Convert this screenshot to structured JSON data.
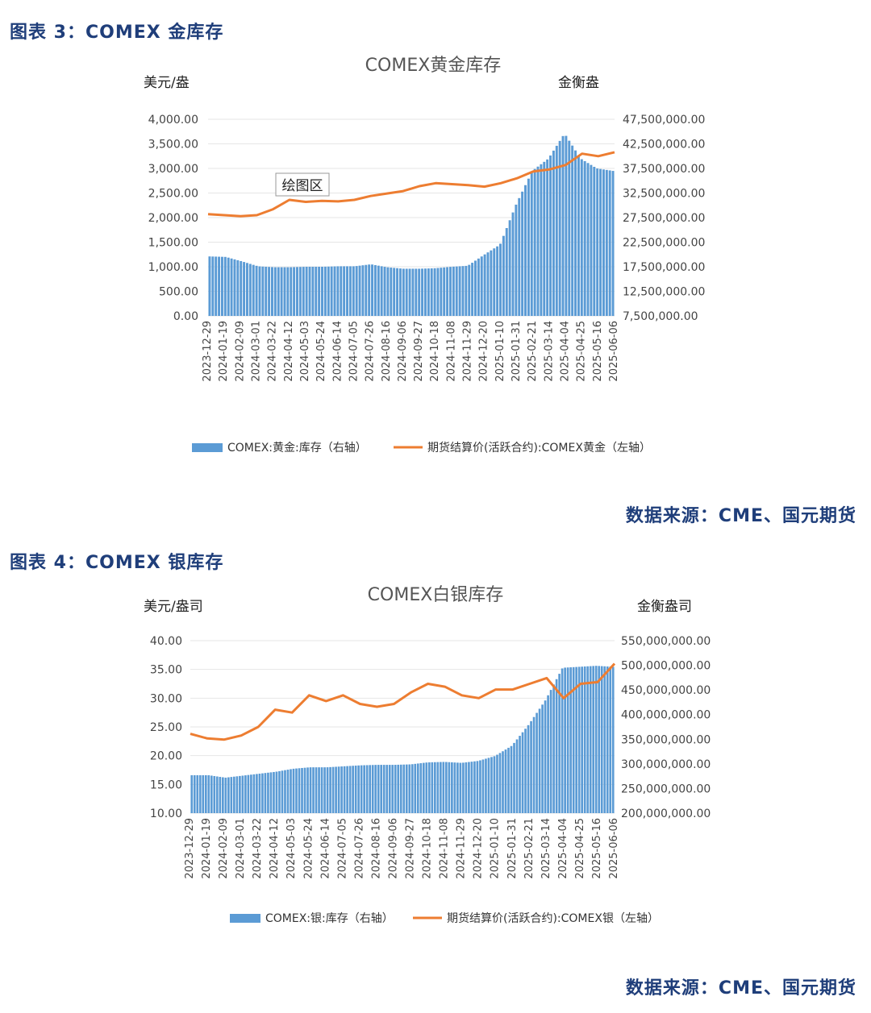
{
  "figure3": {
    "caption": "图表 3：COMEX 金库存",
    "source": "数据来源：CME、国元期货",
    "tooltip": "绘图区"
  },
  "figure4": {
    "caption": "图表 4：COMEX 银库存",
    "source": "数据来源：CME、国元期货"
  },
  "colors": {
    "bar": "#5b9bd5",
    "line": "#ed7d31",
    "caption": "#1f3e7a"
  },
  "chart_data": [
    {
      "type": "bar",
      "title": "COMEX黄金库存",
      "ylabel_left": "美元/盎",
      "ylabel_right": "金衡盎",
      "yticks_left": [
        "4,000.00",
        "3,500.00",
        "3,000.00",
        "2,500.00",
        "2,000.00",
        "1,500.00",
        "1,000.00",
        "500.00",
        "0.00"
      ],
      "yticks_right": [
        "47,500,000.00",
        "42,500,000.00",
        "37,500,000.00",
        "32,500,000.00",
        "27,500,000.00",
        "22,500,000.00",
        "17,500,000.00",
        "12,500,000.00",
        "7,500,000.00"
      ],
      "ylim_left": [
        0,
        4000
      ],
      "ylim_right": [
        7500000,
        47500000
      ],
      "x_tick_labels": [
        "2023-12-29",
        "2024-01-19",
        "2024-02-09",
        "2024-03-01",
        "2024-03-22",
        "2024-04-12",
        "2024-05-03",
        "2024-05-24",
        "2024-06-14",
        "2024-07-05",
        "2024-07-26",
        "2024-08-16",
        "2024-09-06",
        "2024-09-27",
        "2024-10-18",
        "2024-11-08",
        "2024-11-29",
        "2024-12-20",
        "2025-01-10",
        "2025-01-31",
        "2025-02-21",
        "2025-03-14",
        "2025-04-04",
        "2025-04-25",
        "2025-05-16",
        "2025-06-06"
      ],
      "grid": true,
      "legend_position": "bottom",
      "series": [
        {
          "name": "COMEX:黄金:库存（右轴）",
          "type": "bar",
          "axis": "right",
          "values": [
            19600000,
            19500000,
            18600000,
            17600000,
            17400000,
            17400000,
            17500000,
            17500000,
            17600000,
            17600000,
            18000000,
            17400000,
            17100000,
            17100000,
            17200000,
            17500000,
            17700000,
            19900000,
            22000000,
            30200000,
            37000000,
            39500000,
            44600000,
            39500000,
            37500000,
            37000000
          ]
        },
        {
          "name": "期货结算价(活跃合约):COMEX黄金（左轴）",
          "type": "line",
          "axis": "left",
          "values": [
            2070,
            2050,
            2030,
            2050,
            2170,
            2360,
            2320,
            2340,
            2330,
            2360,
            2440,
            2490,
            2540,
            2640,
            2700,
            2680,
            2660,
            2630,
            2700,
            2800,
            2940,
            2980,
            3070,
            3300,
            3250,
            3330
          ]
        }
      ]
    },
    {
      "type": "bar",
      "title": "COMEX白银库存",
      "ylabel_left": "美元/盎司",
      "ylabel_right": "金衡盎司",
      "yticks_left": [
        "40.00",
        "35.00",
        "30.00",
        "25.00",
        "20.00",
        "15.00",
        "10.00"
      ],
      "yticks_right": [
        "550,000,000.00",
        "500,000,000.00",
        "450,000,000.00",
        "400,000,000.00",
        "350,000,000.00",
        "300,000,000.00",
        "250,000,000.00",
        "200,000,000.00"
      ],
      "ylim_left": [
        10,
        40
      ],
      "ylim_right": [
        200000000,
        550000000
      ],
      "x_tick_labels": [
        "2023-12-29",
        "2024-01-19",
        "2024-02-09",
        "2024-03-01",
        "2024-03-22",
        "2024-04-12",
        "2024-05-03",
        "2024-05-24",
        "2024-06-14",
        "2024-07-05",
        "2024-07-26",
        "2024-08-16",
        "2024-09-06",
        "2024-09-27",
        "2024-10-18",
        "2024-11-08",
        "2024-11-29",
        "2024-12-20",
        "2025-01-10",
        "2025-01-31",
        "2025-02-21",
        "2025-03-14",
        "2025-04-04",
        "2025-04-25",
        "2025-05-16",
        "2025-06-06"
      ],
      "grid": true,
      "legend_position": "bottom",
      "series": [
        {
          "name": "COMEX:银:库存（右轴）",
          "type": "bar",
          "axis": "right",
          "values": [
            277000000,
            277000000,
            272000000,
            276000000,
            280000000,
            284000000,
            290000000,
            293000000,
            293000000,
            295000000,
            297000000,
            298000000,
            298000000,
            299000000,
            303000000,
            304000000,
            302000000,
            306000000,
            316000000,
            337000000,
            380000000,
            430000000,
            495000000,
            497000000,
            499000000,
            497000000
          ]
        },
        {
          "name": "期货结算价(活跃合约):COMEX银（左轴）",
          "type": "line",
          "axis": "left",
          "values": [
            23.8,
            23.0,
            22.8,
            23.5,
            25.0,
            28.0,
            27.5,
            30.5,
            29.5,
            30.5,
            29.0,
            28.5,
            29.0,
            31.0,
            32.5,
            32.0,
            30.5,
            30.0,
            31.5,
            31.5,
            32.5,
            33.5,
            30.0,
            32.5,
            32.8,
            36.0
          ]
        }
      ]
    }
  ]
}
